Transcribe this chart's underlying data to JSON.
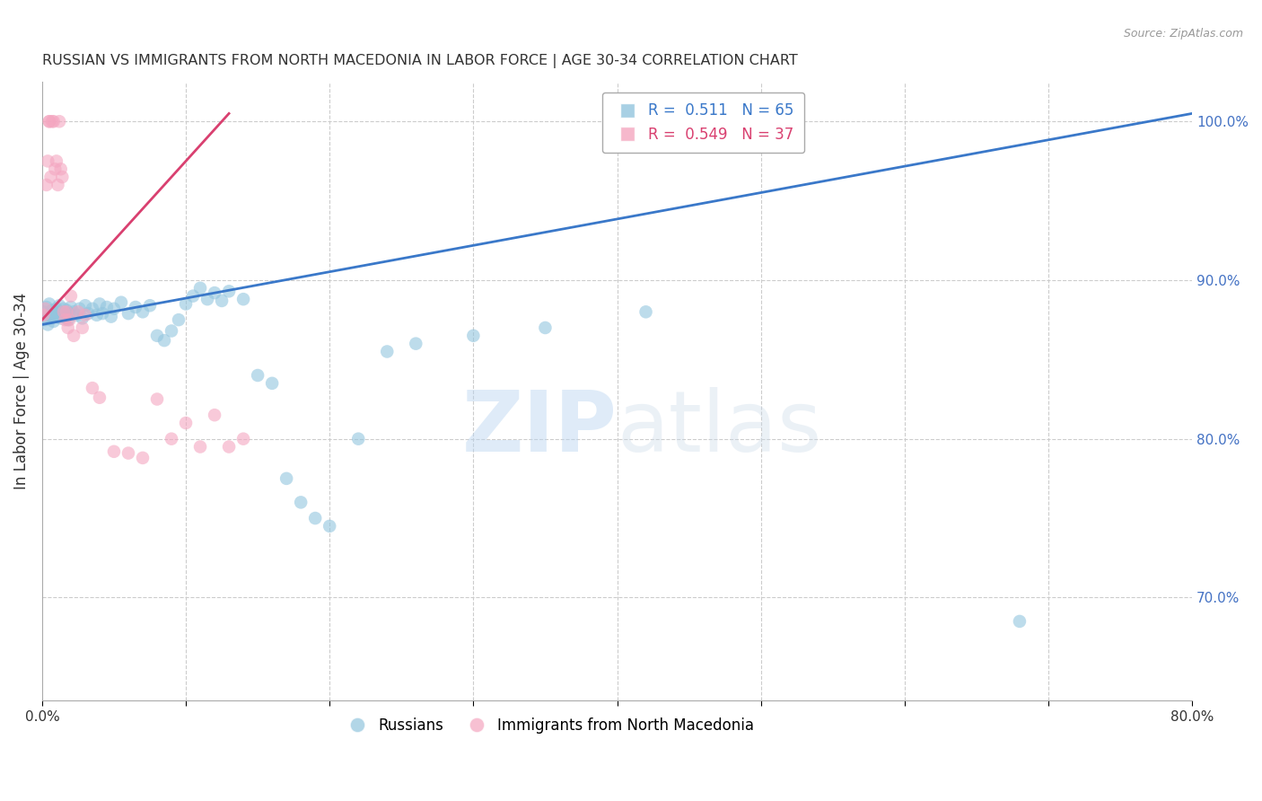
{
  "title": "RUSSIAN VS IMMIGRANTS FROM NORTH MACEDONIA IN LABOR FORCE | AGE 30-34 CORRELATION CHART",
  "source": "Source: ZipAtlas.com",
  "ylabel": "In Labor Force | Age 30-34",
  "watermark_zip": "ZIP",
  "watermark_atlas": "atlas",
  "xlim": [
    0.0,
    0.8
  ],
  "ylim": [
    0.635,
    1.025
  ],
  "russian_R": 0.511,
  "russian_N": 65,
  "nmacedonia_R": 0.549,
  "nmacedonia_N": 37,
  "blue_color": "#92c5de",
  "pink_color": "#f4a6c0",
  "blue_line_color": "#3a78c9",
  "pink_line_color": "#d94070",
  "grid_color": "#cccccc",
  "right_axis_color": "#4472c4",
  "title_color": "#333333",
  "source_color": "#999999",
  "legend_label_blue": "Russians",
  "legend_label_pink": "Immigrants from North Macedonia",
  "russians_x": [
    0.001,
    0.002,
    0.003,
    0.004,
    0.005,
    0.005,
    0.006,
    0.007,
    0.008,
    0.009,
    0.01,
    0.01,
    0.011,
    0.012,
    0.013,
    0.014,
    0.015,
    0.016,
    0.017,
    0.018,
    0.019,
    0.02,
    0.022,
    0.024,
    0.026,
    0.028,
    0.03,
    0.032,
    0.035,
    0.038,
    0.04,
    0.042,
    0.045,
    0.048,
    0.05,
    0.055,
    0.06,
    0.065,
    0.07,
    0.075,
    0.08,
    0.085,
    0.09,
    0.095,
    0.1,
    0.105,
    0.11,
    0.115,
    0.12,
    0.125,
    0.13,
    0.14,
    0.15,
    0.16,
    0.17,
    0.18,
    0.19,
    0.2,
    0.22,
    0.24,
    0.26,
    0.3,
    0.35,
    0.42,
    0.68
  ],
  "russians_y": [
    0.88,
    0.875,
    0.883,
    0.872,
    0.878,
    0.885,
    0.876,
    0.881,
    0.874,
    0.879,
    0.882,
    0.877,
    0.88,
    0.884,
    0.876,
    0.879,
    0.882,
    0.878,
    0.881,
    0.875,
    0.879,
    0.883,
    0.88,
    0.878,
    0.882,
    0.876,
    0.884,
    0.879,
    0.882,
    0.878,
    0.885,
    0.879,
    0.883,
    0.877,
    0.882,
    0.886,
    0.879,
    0.883,
    0.88,
    0.884,
    0.865,
    0.862,
    0.868,
    0.875,
    0.885,
    0.89,
    0.895,
    0.888,
    0.892,
    0.887,
    0.893,
    0.888,
    0.84,
    0.835,
    0.775,
    0.76,
    0.75,
    0.745,
    0.8,
    0.855,
    0.86,
    0.865,
    0.87,
    0.88,
    0.685
  ],
  "nmacedonia_x": [
    0.001,
    0.002,
    0.003,
    0.004,
    0.005,
    0.005,
    0.006,
    0.007,
    0.008,
    0.009,
    0.01,
    0.011,
    0.012,
    0.013,
    0.014,
    0.015,
    0.016,
    0.017,
    0.018,
    0.019,
    0.02,
    0.022,
    0.025,
    0.028,
    0.03,
    0.035,
    0.04,
    0.05,
    0.06,
    0.07,
    0.08,
    0.09,
    0.1,
    0.11,
    0.12,
    0.13,
    0.14
  ],
  "nmacedonia_y": [
    0.878,
    0.882,
    0.96,
    0.975,
    1.0,
    1.0,
    0.965,
    1.0,
    1.0,
    0.97,
    0.975,
    0.96,
    1.0,
    0.97,
    0.965,
    0.88,
    0.875,
    0.88,
    0.87,
    0.875,
    0.89,
    0.865,
    0.88,
    0.87,
    0.878,
    0.832,
    0.826,
    0.792,
    0.791,
    0.788,
    0.825,
    0.8,
    0.81,
    0.795,
    0.815,
    0.795,
    0.8
  ]
}
